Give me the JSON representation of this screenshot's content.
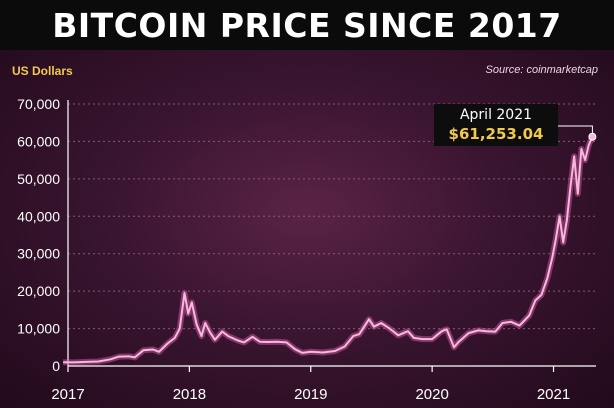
{
  "chart_data": {
    "type": "line",
    "title": "BITCOIN PRICE SINCE 2017",
    "unit_label": "US Dollars",
    "source": "Source: coinmarketcap",
    "x_ticks": [
      "2017",
      "2018",
      "2019",
      "2020",
      "2021"
    ],
    "y_ticks": [
      "0",
      "10,000",
      "20,000",
      "30,000",
      "40,000",
      "50,000",
      "60,000",
      "70,000"
    ],
    "ylim": [
      0,
      70000
    ],
    "xlim": [
      2017.0,
      2021.35
    ],
    "grid": "horizontal",
    "colors": {
      "line": "#f7b8de",
      "glow": "#e05fb0",
      "highlight": "#f2c94c",
      "grid": "#9c6a88"
    },
    "series": [
      {
        "points": [
          [
            2016.96,
            1000
          ],
          [
            2017.05,
            950
          ],
          [
            2017.15,
            1100
          ],
          [
            2017.25,
            1200
          ],
          [
            2017.35,
            1800
          ],
          [
            2017.42,
            2500
          ],
          [
            2017.5,
            2600
          ],
          [
            2017.55,
            2300
          ],
          [
            2017.62,
            4200
          ],
          [
            2017.7,
            4400
          ],
          [
            2017.75,
            3800
          ],
          [
            2017.82,
            6000
          ],
          [
            2017.88,
            7500
          ],
          [
            2017.92,
            10000
          ],
          [
            2017.96,
            19500
          ],
          [
            2017.99,
            14000
          ],
          [
            2018.02,
            17000
          ],
          [
            2018.06,
            11000
          ],
          [
            2018.1,
            8000
          ],
          [
            2018.13,
            11500
          ],
          [
            2018.17,
            9000
          ],
          [
            2018.21,
            7000
          ],
          [
            2018.27,
            9200
          ],
          [
            2018.32,
            8000
          ],
          [
            2018.4,
            6800
          ],
          [
            2018.45,
            6300
          ],
          [
            2018.52,
            7800
          ],
          [
            2018.58,
            6500
          ],
          [
            2018.65,
            6400
          ],
          [
            2018.72,
            6500
          ],
          [
            2018.8,
            6300
          ],
          [
            2018.87,
            4500
          ],
          [
            2018.93,
            3500
          ],
          [
            2019.0,
            3800
          ],
          [
            2019.1,
            3600
          ],
          [
            2019.2,
            4000
          ],
          [
            2019.28,
            5200
          ],
          [
            2019.35,
            8000
          ],
          [
            2019.4,
            8500
          ],
          [
            2019.48,
            12500
          ],
          [
            2019.52,
            10500
          ],
          [
            2019.58,
            11500
          ],
          [
            2019.65,
            10000
          ],
          [
            2019.72,
            8200
          ],
          [
            2019.8,
            9300
          ],
          [
            2019.85,
            7500
          ],
          [
            2019.92,
            7200
          ],
          [
            2020.0,
            7200
          ],
          [
            2020.08,
            9300
          ],
          [
            2020.12,
            9800
          ],
          [
            2020.18,
            5000
          ],
          [
            2020.22,
            6500
          ],
          [
            2020.3,
            8800
          ],
          [
            2020.38,
            9500
          ],
          [
            2020.45,
            9300
          ],
          [
            2020.52,
            9200
          ],
          [
            2020.58,
            11500
          ],
          [
            2020.65,
            11800
          ],
          [
            2020.72,
            10800
          ],
          [
            2020.8,
            13500
          ],
          [
            2020.85,
            17500
          ],
          [
            2020.9,
            19000
          ],
          [
            2020.95,
            23500
          ],
          [
            2020.99,
            29000
          ],
          [
            2021.02,
            34000
          ],
          [
            2021.05,
            40000
          ],
          [
            2021.08,
            33000
          ],
          [
            2021.11,
            39000
          ],
          [
            2021.14,
            48000
          ],
          [
            2021.17,
            56000
          ],
          [
            2021.2,
            46000
          ],
          [
            2021.23,
            58000
          ],
          [
            2021.26,
            55000
          ],
          [
            2021.29,
            59000
          ],
          [
            2021.32,
            61253.04
          ]
        ]
      }
    ],
    "annotation": {
      "date": "April 2021",
      "value_label": "$61,253.04",
      "x": 2021.32,
      "y": 61253.04
    }
  }
}
